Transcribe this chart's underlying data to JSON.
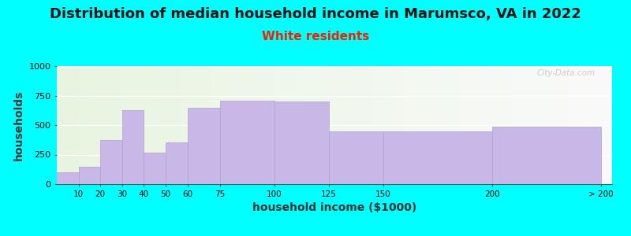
{
  "title": "Distribution of median household income in Marumsco, VA in 2022",
  "subtitle": "White residents",
  "xlabel": "household income ($1000)",
  "ylabel": "households",
  "bg_color": "#00FFFF",
  "bar_color": "#c8b8e8",
  "bar_edge_color": "#b0a0d0",
  "bin_edges": [
    0,
    10,
    20,
    30,
    40,
    50,
    60,
    75,
    100,
    125,
    150,
    200,
    250
  ],
  "bin_labels": [
    "10",
    "20",
    "30",
    "40",
    "50",
    "60",
    "75",
    "100",
    "125",
    "150",
    "200",
    "> 200"
  ],
  "values": [
    100,
    150,
    375,
    630,
    265,
    355,
    650,
    710,
    700,
    445,
    445,
    490
  ],
  "xlim": [
    0,
    255
  ],
  "ylim": [
    0,
    1000
  ],
  "yticks": [
    0,
    250,
    500,
    750,
    1000
  ],
  "xtick_positions": [
    10,
    20,
    30,
    40,
    50,
    60,
    75,
    100,
    125,
    150,
    200,
    250
  ],
  "xtick_labels": [
    "10",
    "20",
    "30",
    "40",
    "50",
    "60",
    "75",
    "100",
    "125",
    "150",
    "200",
    "> 200"
  ],
  "title_fontsize": 13,
  "subtitle_fontsize": 11,
  "subtitle_color": "#ee2200",
  "axis_label_fontsize": 10,
  "watermark": "City-Data.com"
}
